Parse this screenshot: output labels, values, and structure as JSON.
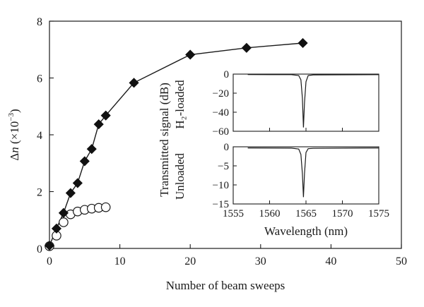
{
  "chart_data": [
    {
      "type": "scatter",
      "xlabel": "Number of beam sweeps",
      "ylabel_main": "Δ",
      "ylabel_var": "n",
      "ylabel_rest": " (×10",
      "ylabel_exp": "−3",
      "ylabel_close": ")",
      "xlim": [
        0,
        50
      ],
      "ylim": [
        0,
        8
      ],
      "xticks": [
        "0",
        "10",
        "20",
        "30",
        "40",
        "50"
      ],
      "yticks": [
        "0",
        "2",
        "4",
        "6",
        "8"
      ],
      "grid": false,
      "series": [
        {
          "marker": "filled-diamond",
          "connected": true,
          "x": [
            0,
            1,
            2,
            3,
            4,
            5,
            6,
            7,
            8,
            12,
            20,
            28,
            36
          ],
          "y": [
            0.1,
            0.7,
            1.25,
            1.95,
            2.3,
            3.07,
            3.5,
            4.37,
            4.68,
            5.83,
            6.82,
            7.06,
            7.23
          ]
        },
        {
          "marker": "open-circle",
          "connected": false,
          "x": [
            0,
            1,
            2,
            3,
            4,
            5,
            6,
            7,
            8
          ],
          "y": [
            0.08,
            0.45,
            0.92,
            1.2,
            1.3,
            1.36,
            1.4,
            1.43,
            1.45
          ]
        }
      ]
    },
    {
      "type": "line",
      "panel": "inset-top",
      "ylabel": "H₂-loaded",
      "xlim": [
        1555,
        1575
      ],
      "ylim": [
        -60,
        0
      ],
      "yticks": [
        "0",
        "−20",
        "−40",
        "−60"
      ],
      "x": [
        1557,
        1563,
        1564.0,
        1564.3,
        1564.5,
        1564.65,
        1564.8,
        1565.0,
        1565.3,
        1566,
        1575
      ],
      "y": [
        -0.5,
        -0.6,
        -1.5,
        -6,
        -25,
        -56,
        -30,
        -8,
        -1.5,
        -0.8,
        -0.6
      ]
    },
    {
      "type": "line",
      "panel": "inset-bottom",
      "ylabel": "Unloaded",
      "xlabel": "Wavelength (nm)",
      "shared_ylabel": "Transmitted signal (dB)",
      "xlim": [
        1555,
        1575
      ],
      "ylim": [
        -15,
        0
      ],
      "xticks": [
        "1555",
        "1560",
        "1565",
        "1570",
        "1575"
      ],
      "yticks": [
        "0",
        "−5",
        "−10",
        "−15"
      ],
      "x": [
        1557,
        1563,
        1564.0,
        1564.3,
        1564.5,
        1564.65,
        1564.8,
        1565.0,
        1565.3,
        1566,
        1575
      ],
      "y": [
        -0.3,
        -0.35,
        -0.6,
        -2,
        -7,
        -13.2,
        -7,
        -1.5,
        -0.5,
        -0.4,
        -0.3
      ]
    }
  ]
}
